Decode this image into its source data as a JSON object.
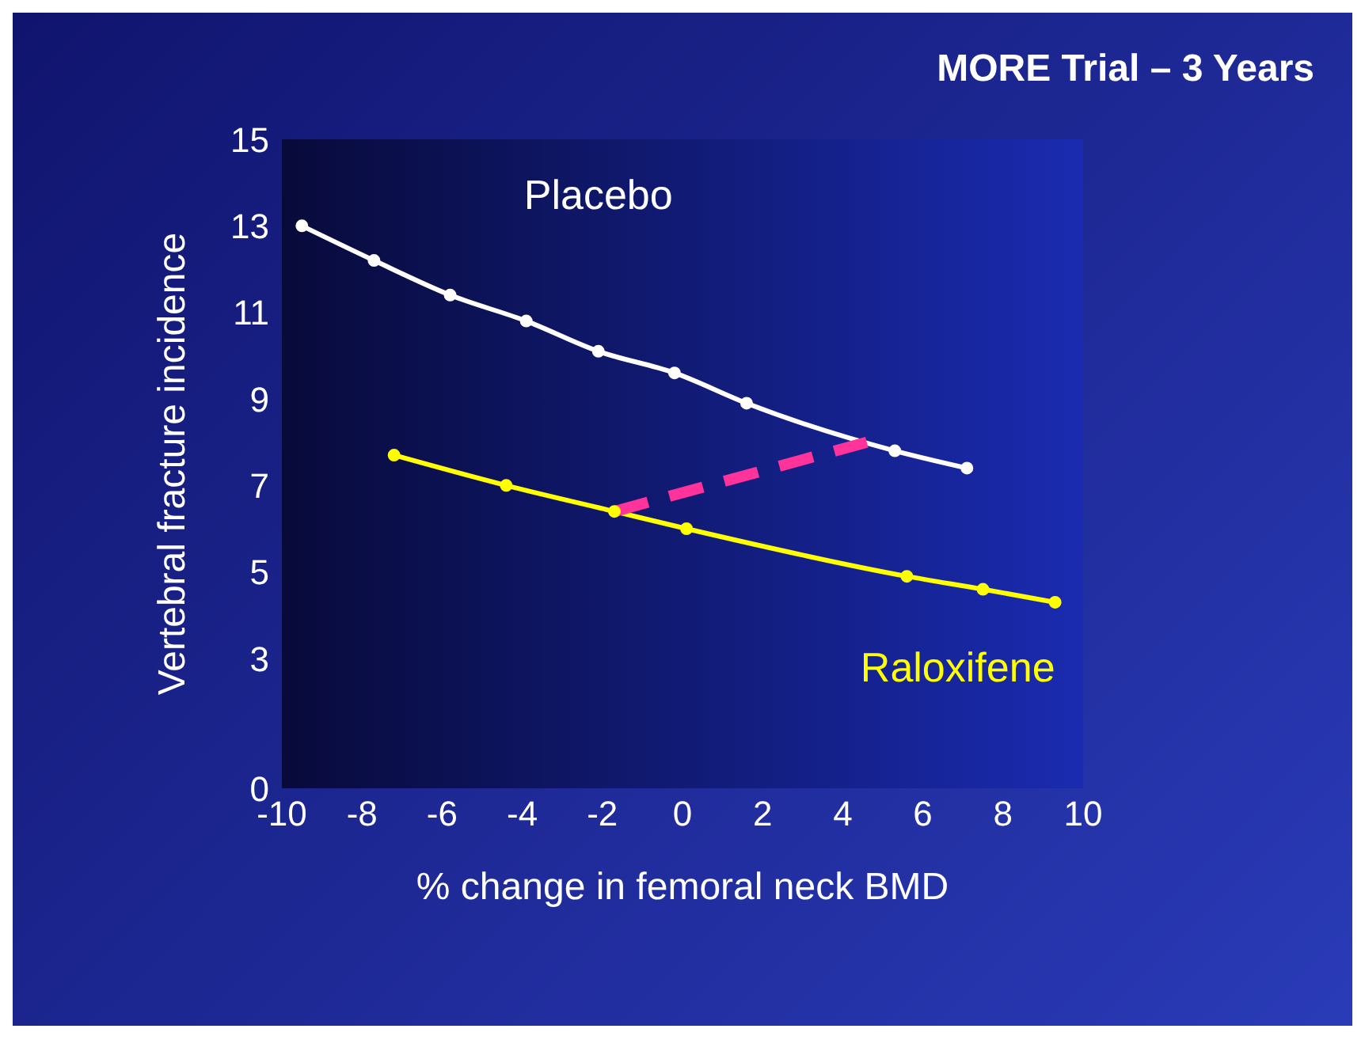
{
  "chart_data": {
    "type": "line",
    "title": "MORE Trial – 3 Years",
    "xlabel": "% change in femoral neck BMD",
    "ylabel": "Vertebral fracture incidence",
    "xlim": [
      -10,
      10
    ],
    "xticks": [
      -10,
      -8,
      -6,
      -4,
      -2,
      0,
      2,
      4,
      6,
      8,
      10
    ],
    "ylim": [
      0,
      15
    ],
    "yticks": [
      0,
      3,
      5,
      7,
      9,
      11,
      13,
      15
    ],
    "marker": "circle",
    "series": [
      {
        "name": "Placebo",
        "color": "#ffffff",
        "x": [
          -9.5,
          -7.7,
          -5.8,
          -3.9,
          -2.1,
          -0.2,
          1.6,
          5.3,
          7.1
        ],
        "values": [
          13.0,
          12.2,
          11.4,
          10.8,
          10.1,
          9.6,
          8.9,
          7.8,
          7.4
        ]
      },
      {
        "name": "Raloxifene",
        "color": "#ffff00",
        "x": [
          -7.2,
          -4.4,
          -1.7,
          0.1,
          5.6,
          7.5,
          9.3
        ],
        "values": [
          7.7,
          7.0,
          6.4,
          6.0,
          4.9,
          4.6,
          4.3
        ]
      },
      {
        "color": "#ff3399",
        "line_style": "dashed",
        "marker": "none",
        "x": [
          -1.7,
          4.6
        ],
        "values": [
          6.4,
          8.0
        ]
      }
    ]
  }
}
